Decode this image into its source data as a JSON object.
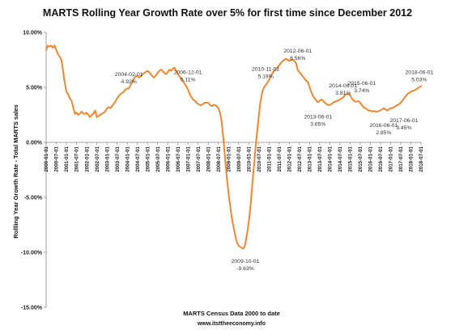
{
  "chart_data": {
    "type": "line",
    "title": "MARTS Rolling Year Growth Rate over 5% for first time since December 2012",
    "xlabel": "MARTS Census Data 2000 to date",
    "ylabel": "Rollling Year Growth Rate - Total MARTS sales",
    "source_text": "www.itsttheeconomy.info",
    "ylim": [
      -15,
      10
    ],
    "yticks": [
      "10.00%",
      "5.00%",
      "0.00%",
      "-5.00%",
      "-10.00%",
      "-15.00%"
    ],
    "ytick_values": [
      10,
      5,
      0,
      -5,
      -10,
      -15
    ],
    "grid": false,
    "line_color": "#f0862d",
    "x_start": "2000-01",
    "x_end": "2018-07",
    "xticks": [
      "2000-01-01",
      "2000-07-01",
      "2001-01-01",
      "2001-07-01",
      "2002-01-01",
      "2002-07-01",
      "2003-01-01",
      "2003-07-01",
      "2004-01-01",
      "2004-07-01",
      "2005-01-01",
      "2005-07-01",
      "2006-01-01",
      "2006-07-01",
      "2007-01-01",
      "2007-07-01",
      "2008-01-01",
      "2008-07-01",
      "2009-01-01",
      "2009-07-01",
      "2010-01-01",
      "2010-07-01",
      "2011-01-01",
      "2011-07-01",
      "2012-01-01",
      "2012-07-01",
      "2013-01-01",
      "2013-07-01",
      "2014-01-01",
      "2014-07-01",
      "2015-01-01",
      "2015-07-01",
      "2016-01-01",
      "2016-07-01",
      "2017-01-01",
      "2017-07-01",
      "2018-01-01",
      "2018-07-01"
    ],
    "series": [
      {
        "points": [
          [
            "2000-01",
            8.4
          ],
          [
            "2000-02",
            8.8
          ],
          [
            "2000-03",
            8.7
          ],
          [
            "2000-04",
            8.8
          ],
          [
            "2000-05",
            8.6
          ],
          [
            "2000-06",
            8.8
          ],
          [
            "2000-07",
            8.4
          ],
          [
            "2000-08",
            8.0
          ],
          [
            "2000-09",
            7.8
          ],
          [
            "2000-10",
            7.5
          ],
          [
            "2000-11",
            6.5
          ],
          [
            "2000-12",
            5.5
          ],
          [
            "2001-01",
            4.6
          ],
          [
            "2001-02",
            4.4
          ],
          [
            "2001-03",
            4.0
          ],
          [
            "2001-04",
            3.8
          ],
          [
            "2001-05",
            3.2
          ],
          [
            "2001-06",
            2.6
          ],
          [
            "2001-07",
            2.7
          ],
          [
            "2001-08",
            2.5
          ],
          [
            "2001-09",
            2.6
          ],
          [
            "2001-10",
            2.8
          ],
          [
            "2001-11",
            2.6
          ],
          [
            "2001-12",
            2.6
          ],
          [
            "2002-01",
            2.7
          ],
          [
            "2002-02",
            2.5
          ],
          [
            "2002-03",
            2.3
          ],
          [
            "2002-04",
            2.5
          ],
          [
            "2002-05",
            2.6
          ],
          [
            "2002-06",
            2.9
          ],
          [
            "2002-07",
            2.3
          ],
          [
            "2002-08",
            2.4
          ],
          [
            "2002-09",
            2.5
          ],
          [
            "2002-10",
            2.6
          ],
          [
            "2002-11",
            2.7
          ],
          [
            "2002-12",
            2.8
          ],
          [
            "2003-01",
            3.1
          ],
          [
            "2003-02",
            3.2
          ],
          [
            "2003-03",
            3.1
          ],
          [
            "2003-04",
            3.3
          ],
          [
            "2003-05",
            3.5
          ],
          [
            "2003-06",
            3.7
          ],
          [
            "2003-07",
            4.0
          ],
          [
            "2003-08",
            4.2
          ],
          [
            "2003-09",
            4.4
          ],
          [
            "2003-10",
            4.5
          ],
          [
            "2003-11",
            4.6
          ],
          [
            "2003-12",
            4.8
          ],
          [
            "2004-01",
            4.9
          ],
          [
            "2004-02",
            4.92
          ],
          [
            "2004-03",
            5.2
          ],
          [
            "2004-04",
            5.5
          ],
          [
            "2004-05",
            5.8
          ],
          [
            "2004-06",
            6.0
          ],
          [
            "2004-07",
            6.0
          ],
          [
            "2004-08",
            5.9
          ],
          [
            "2004-09",
            6.0
          ],
          [
            "2004-10",
            6.2
          ],
          [
            "2004-11",
            6.3
          ],
          [
            "2004-12",
            6.4
          ],
          [
            "2005-01",
            6.5
          ],
          [
            "2005-02",
            6.4
          ],
          [
            "2005-03",
            6.2
          ],
          [
            "2005-04",
            6.0
          ],
          [
            "2005-05",
            5.9
          ],
          [
            "2005-06",
            6.1
          ],
          [
            "2005-07",
            6.3
          ],
          [
            "2005-08",
            6.5
          ],
          [
            "2005-09",
            6.6
          ],
          [
            "2005-10",
            6.5
          ],
          [
            "2005-11",
            6.3
          ],
          [
            "2005-12",
            6.2
          ],
          [
            "2006-01",
            6.4
          ],
          [
            "2006-02",
            6.6
          ],
          [
            "2006-03",
            6.5
          ],
          [
            "2006-04",
            6.7
          ],
          [
            "2006-05",
            6.8
          ],
          [
            "2006-06",
            6.5
          ],
          [
            "2006-07",
            6.2
          ],
          [
            "2006-08",
            6.0
          ],
          [
            "2006-09",
            5.8
          ],
          [
            "2006-10",
            5.6
          ],
          [
            "2006-11",
            5.3
          ],
          [
            "2006-12",
            5.11
          ],
          [
            "2007-01",
            4.8
          ],
          [
            "2007-02",
            4.4
          ],
          [
            "2007-03",
            4.1
          ],
          [
            "2007-04",
            3.9
          ],
          [
            "2007-05",
            3.8
          ],
          [
            "2007-06",
            3.6
          ],
          [
            "2007-07",
            3.5
          ],
          [
            "2007-08",
            3.4
          ],
          [
            "2007-09",
            3.4
          ],
          [
            "2007-10",
            3.5
          ],
          [
            "2007-11",
            3.6
          ],
          [
            "2007-12",
            3.6
          ],
          [
            "2008-01",
            3.6
          ],
          [
            "2008-02",
            3.4
          ],
          [
            "2008-03",
            3.3
          ],
          [
            "2008-04",
            3.4
          ],
          [
            "2008-05",
            3.4
          ],
          [
            "2008-06",
            3.3
          ],
          [
            "2008-07",
            3.1
          ],
          [
            "2008-08",
            2.7
          ],
          [
            "2008-09",
            1.8
          ],
          [
            "2008-10",
            0.3
          ],
          [
            "2008-11",
            -1.6
          ],
          [
            "2008-12",
            -3.2
          ],
          [
            "2009-01",
            -4.6
          ],
          [
            "2009-02",
            -5.8
          ],
          [
            "2009-03",
            -6.9
          ],
          [
            "2009-04",
            -7.7
          ],
          [
            "2009-05",
            -8.5
          ],
          [
            "2009-06",
            -9.1
          ],
          [
            "2009-07",
            -9.4
          ],
          [
            "2009-08",
            -9.5
          ],
          [
            "2009-09",
            -9.6
          ],
          [
            "2009-10",
            -9.63
          ],
          [
            "2009-11",
            -9.2
          ],
          [
            "2009-12",
            -8.3
          ],
          [
            "2010-01",
            -7.2
          ],
          [
            "2010-02",
            -5.8
          ],
          [
            "2010-03",
            -4.0
          ],
          [
            "2010-04",
            -2.3
          ],
          [
            "2010-05",
            -0.5
          ],
          [
            "2010-06",
            1.0
          ],
          [
            "2010-07",
            2.5
          ],
          [
            "2010-08",
            3.8
          ],
          [
            "2010-09",
            4.6
          ],
          [
            "2010-10",
            5.0
          ],
          [
            "2010-11",
            5.19
          ],
          [
            "2010-12",
            5.4
          ],
          [
            "2011-01",
            5.7
          ],
          [
            "2011-02",
            6.0
          ],
          [
            "2011-03",
            6.3
          ],
          [
            "2011-04",
            6.5
          ],
          [
            "2011-05",
            6.6
          ],
          [
            "2011-06",
            6.8
          ],
          [
            "2011-07",
            7.0
          ],
          [
            "2011-08",
            7.2
          ],
          [
            "2011-09",
            7.4
          ],
          [
            "2011-10",
            7.5
          ],
          [
            "2011-11",
            7.6
          ],
          [
            "2011-12",
            7.5
          ],
          [
            "2012-01",
            7.4
          ],
          [
            "2012-02",
            7.5
          ],
          [
            "2012-03",
            7.5
          ],
          [
            "2012-04",
            7.4
          ],
          [
            "2012-05",
            7.2
          ],
          [
            "2012-06",
            6.56
          ],
          [
            "2012-07",
            6.4
          ],
          [
            "2012-08",
            6.2
          ],
          [
            "2012-09",
            6.0
          ],
          [
            "2012-10",
            5.8
          ],
          [
            "2012-11",
            5.6
          ],
          [
            "2012-12",
            5.5
          ],
          [
            "2013-01",
            5.0
          ],
          [
            "2013-02",
            4.6
          ],
          [
            "2013-03",
            4.2
          ],
          [
            "2013-04",
            4.0
          ],
          [
            "2013-05",
            3.8
          ],
          [
            "2013-06",
            3.65
          ],
          [
            "2013-07",
            3.8
          ],
          [
            "2013-08",
            3.9
          ],
          [
            "2013-09",
            3.8
          ],
          [
            "2013-10",
            3.6
          ],
          [
            "2013-11",
            3.5
          ],
          [
            "2013-12",
            3.4
          ],
          [
            "2014-01",
            3.4
          ],
          [
            "2014-02",
            3.5
          ],
          [
            "2014-03",
            3.6
          ],
          [
            "2014-04",
            3.7
          ],
          [
            "2014-05",
            3.75
          ],
          [
            "2014-06",
            3.81
          ],
          [
            "2014-07",
            3.9
          ],
          [
            "2014-08",
            4.0
          ],
          [
            "2014-09",
            4.1
          ],
          [
            "2014-10",
            4.3
          ],
          [
            "2014-11",
            4.4
          ],
          [
            "2014-12",
            4.4
          ],
          [
            "2015-01",
            4.3
          ],
          [
            "2015-02",
            4.0
          ],
          [
            "2015-03",
            3.8
          ],
          [
            "2015-04",
            3.7
          ],
          [
            "2015-05",
            3.72
          ],
          [
            "2015-06",
            3.74
          ],
          [
            "2015-07",
            3.6
          ],
          [
            "2015-08",
            3.4
          ],
          [
            "2015-09",
            3.2
          ],
          [
            "2015-10",
            3.1
          ],
          [
            "2015-11",
            3.0
          ],
          [
            "2015-12",
            2.9
          ],
          [
            "2016-01",
            2.9
          ],
          [
            "2016-02",
            2.8
          ],
          [
            "2016-03",
            2.85
          ],
          [
            "2016-04",
            2.8
          ],
          [
            "2016-05",
            2.8
          ],
          [
            "2016-06",
            2.85
          ],
          [
            "2016-07",
            2.9
          ],
          [
            "2016-08",
            3.0
          ],
          [
            "2016-09",
            3.1
          ],
          [
            "2016-10",
            3.0
          ],
          [
            "2016-11",
            2.9
          ],
          [
            "2016-12",
            3.0
          ],
          [
            "2017-01",
            3.1
          ],
          [
            "2017-02",
            3.1
          ],
          [
            "2017-03",
            3.2
          ],
          [
            "2017-04",
            3.3
          ],
          [
            "2017-05",
            3.4
          ],
          [
            "2017-06",
            3.45
          ],
          [
            "2017-07",
            3.6
          ],
          [
            "2017-08",
            3.8
          ],
          [
            "2017-09",
            4.0
          ],
          [
            "2017-10",
            4.2
          ],
          [
            "2017-11",
            4.4
          ],
          [
            "2017-12",
            4.5
          ],
          [
            "2018-01",
            4.6
          ],
          [
            "2018-02",
            4.7
          ],
          [
            "2018-03",
            4.7
          ],
          [
            "2018-04",
            4.8
          ],
          [
            "2018-05",
            4.9
          ],
          [
            "2018-06",
            5.03
          ],
          [
            "2018-07",
            5.1
          ]
        ]
      }
    ],
    "annotations": [
      {
        "date": "2004-02-01",
        "value": "4.92%",
        "x": "2004-02",
        "y": 4.92
      },
      {
        "date": "2006-12-01",
        "value": "5.11%",
        "x": "2006-12",
        "y": 5.11
      },
      {
        "date": "2010-11-01",
        "value": "5.19%",
        "x": "2010-11",
        "y": 5.19
      },
      {
        "date": "2012-06-01",
        "value": "6.56%",
        "x": "2012-06",
        "y": 6.56
      },
      {
        "date": "2014-06-01",
        "value": "3.81%",
        "x": "2014-06",
        "y": 3.81
      },
      {
        "date": "2015-06-01",
        "value": "3.74%",
        "x": "2015-06",
        "y": 3.74
      },
      {
        "date": "2018-06-01",
        "value": "5.03%",
        "x": "2018-06",
        "y": 5.03
      },
      {
        "date": "2013-06-01",
        "value": "3.65%",
        "x": "2013-06",
        "y": 3.65
      },
      {
        "date": "2016-06-01",
        "value": "2.85%",
        "x": "2016-06",
        "y": 2.85
      },
      {
        "date": "2017-06-01",
        "value": "3.45%",
        "x": "2017-06",
        "y": 3.45
      },
      {
        "date": "2009-10-01",
        "value": "-9.63%",
        "x": "2009-10",
        "y": -9.63
      }
    ]
  }
}
